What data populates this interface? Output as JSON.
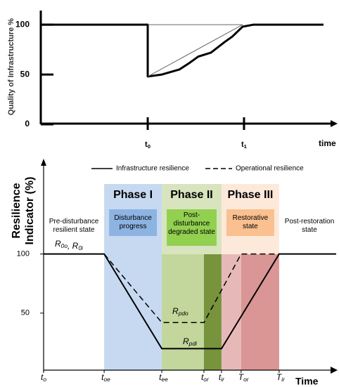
{
  "chart_data": [
    {
      "type": "line",
      "y_label": "Quality of Infrastructure %",
      "x_label": "time",
      "xlim": [
        0,
        10
      ],
      "ylim": [
        0,
        110
      ],
      "yticks": [
        0,
        50,
        100
      ],
      "xticks": [
        {
          "value": 3.62,
          "label": "t",
          "subscript": "0"
        },
        {
          "value": 6.88,
          "label": "t",
          "subscript": "1"
        }
      ],
      "series": [
        {
          "color": "#000000",
          "width": 3,
          "x": [
            0,
            3.62,
            3.62,
            4.1,
            4.69,
            5.05,
            5.33,
            5.76,
            6.24,
            6.48,
            6.83,
            7.19,
            9.57
          ],
          "values": [
            100,
            100,
            48,
            50,
            55,
            62,
            68,
            72,
            83,
            88,
            98,
            100,
            100
          ]
        },
        {
          "color": "#666666",
          "width": 1,
          "x": [
            3.62,
            6.83
          ],
          "values": [
            48,
            100
          ]
        },
        {
          "color": "#666666",
          "width": 1,
          "x": [
            3.62,
            6.83
          ],
          "values": [
            100,
            100
          ]
        }
      ]
    },
    {
      "type": "line",
      "y_label": "Resilience Indicator (%)",
      "x_label": "Time",
      "xlim": [
        0,
        10
      ],
      "ylim": [
        0,
        120
      ],
      "yticks": [
        50,
        100
      ],
      "xticks": [
        {
          "value": 0,
          "label": "t",
          "subscript": "o"
        },
        {
          "value": 2.07,
          "label": "t",
          "subscript": "oe"
        },
        {
          "value": 4.04,
          "label": "t",
          "subscript": "ee"
        },
        {
          "value": 5.48,
          "label": "t",
          "subscript": "or"
        },
        {
          "value": 6.08,
          "label": "t",
          "subscript": "ir"
        },
        {
          "value": 6.75,
          "label": "T",
          "subscript": "or"
        },
        {
          "value": 8.05,
          "label": "T",
          "subscript": "ir"
        }
      ],
      "series": [
        {
          "name": "Infrastructure resilience",
          "color": "#000000",
          "dash": false,
          "width": 2,
          "x": [
            0,
            2.07,
            4.04,
            6.08,
            8.05,
            10
          ],
          "values": [
            100,
            100,
            20,
            20,
            100,
            100
          ]
        },
        {
          "name": "Operational resilience",
          "color": "#000000",
          "dash": true,
          "width": 1.5,
          "x": [
            2.07,
            4.04,
            5.48,
            6.75,
            8.05
          ],
          "values": [
            100,
            42,
            42,
            100,
            100
          ]
        }
      ],
      "phases": [
        {
          "title": "Phase I",
          "label": "Disturbance progress",
          "color": "#c6d9f1",
          "box_color": "#8db3e2",
          "bands": [
            "#c6d9f1"
          ]
        },
        {
          "title": "Phase II",
          "label": "Post-disturbance degraded state",
          "color": "#d7e4bd",
          "box_color": "#92d050",
          "bands": [
            "#c3d69b",
            "#77933c"
          ]
        },
        {
          "title": "Phase III",
          "label": "Restorative state",
          "color": "#fde9d9",
          "box_color": "#fac090",
          "bands": [
            "#e6b9b8",
            "#d99694"
          ]
        }
      ],
      "annotations": [
        "Pre-disturbance resilient state",
        "Post-restoration state"
      ],
      "r_labels": [
        [
          {
            "label": "R",
            "subscript": "0o"
          },
          {
            "label": ", R",
            "subscript": "0i"
          }
        ],
        [
          {
            "label": "R",
            "subscript": "pdo"
          }
        ],
        [
          {
            "label": "R",
            "subscript": "pdi"
          }
        ]
      ]
    }
  ]
}
